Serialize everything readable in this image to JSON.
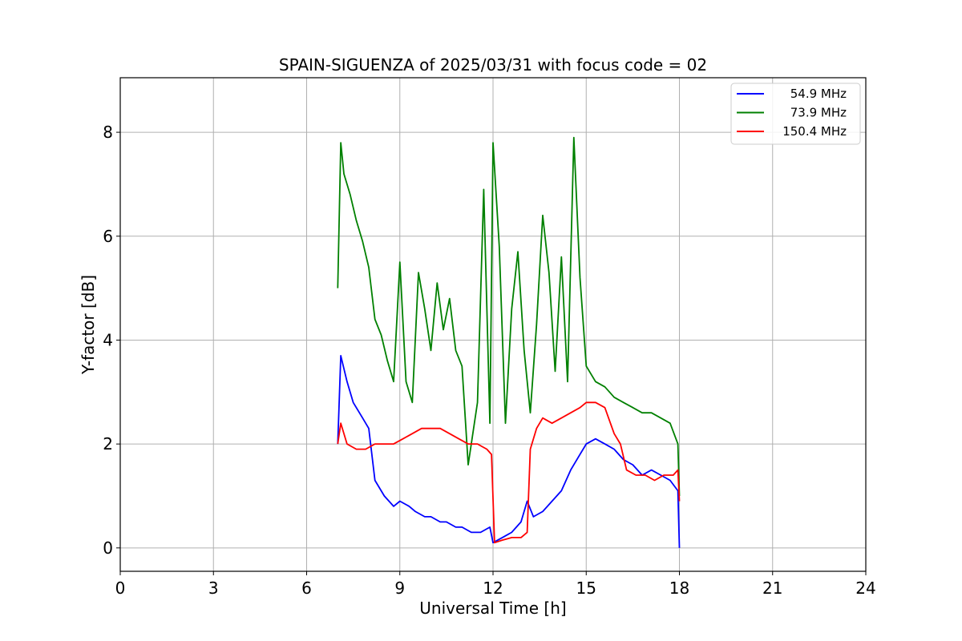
{
  "chart_data": {
    "type": "line",
    "title": "SPAIN-SIGUENZA of 2025/03/31 with focus code = 02",
    "xlabel": "Universal Time [h]",
    "ylabel": "Y-factor [dB]",
    "xlim": [
      0,
      24
    ],
    "ylim": [
      -0.45,
      9.05
    ],
    "xticks": [
      0,
      3,
      6,
      9,
      12,
      15,
      18,
      21,
      24
    ],
    "yticks": [
      0,
      2,
      4,
      6,
      8
    ],
    "grid": true,
    "legend_position": "top-right",
    "series": [
      {
        "name": "54.9 MHz",
        "color": "#0000ff",
        "x": [
          7.0,
          7.1,
          7.3,
          7.5,
          7.8,
          8.0,
          8.2,
          8.5,
          8.8,
          9.0,
          9.3,
          9.5,
          9.8,
          10.0,
          10.3,
          10.5,
          10.8,
          11.0,
          11.3,
          11.6,
          11.9,
          12.0,
          12.3,
          12.6,
          12.9,
          13.1,
          13.3,
          13.6,
          13.9,
          14.2,
          14.5,
          14.8,
          15.0,
          15.3,
          15.6,
          15.9,
          16.2,
          16.5,
          16.8,
          17.1,
          17.4,
          17.7,
          17.95,
          18.0
        ],
        "y": [
          2.0,
          3.7,
          3.2,
          2.8,
          2.5,
          2.3,
          1.3,
          1.0,
          0.8,
          0.9,
          0.8,
          0.7,
          0.6,
          0.6,
          0.5,
          0.5,
          0.4,
          0.4,
          0.3,
          0.3,
          0.4,
          0.1,
          0.2,
          0.3,
          0.5,
          0.9,
          0.6,
          0.7,
          0.9,
          1.1,
          1.5,
          1.8,
          2.0,
          2.1,
          2.0,
          1.9,
          1.7,
          1.6,
          1.4,
          1.5,
          1.4,
          1.3,
          1.1,
          0.0
        ]
      },
      {
        "name": "73.9 MHz",
        "color": "#008000",
        "x": [
          7.0,
          7.1,
          7.2,
          7.4,
          7.6,
          7.8,
          8.0,
          8.2,
          8.4,
          8.6,
          8.8,
          9.0,
          9.2,
          9.4,
          9.6,
          9.8,
          10.0,
          10.2,
          10.4,
          10.6,
          10.8,
          11.0,
          11.2,
          11.5,
          11.7,
          11.9,
          12.0,
          12.2,
          12.4,
          12.6,
          12.8,
          13.0,
          13.2,
          13.4,
          13.6,
          13.8,
          14.0,
          14.2,
          14.4,
          14.6,
          14.8,
          15.0,
          15.3,
          15.6,
          15.9,
          16.2,
          16.5,
          16.8,
          17.1,
          17.4,
          17.7,
          17.95,
          18.0
        ],
        "y": [
          5.0,
          7.8,
          7.2,
          6.8,
          6.3,
          5.9,
          5.4,
          4.4,
          4.1,
          3.6,
          3.2,
          5.5,
          3.2,
          2.8,
          5.3,
          4.6,
          3.8,
          5.1,
          4.2,
          4.8,
          3.8,
          3.5,
          1.6,
          2.8,
          6.9,
          2.4,
          7.8,
          5.8,
          2.4,
          4.6,
          5.7,
          3.8,
          2.6,
          4.3,
          6.4,
          5.3,
          3.4,
          5.6,
          3.2,
          7.9,
          5.2,
          3.5,
          3.2,
          3.1,
          2.9,
          2.8,
          2.7,
          2.6,
          2.6,
          2.5,
          2.4,
          2.0,
          1.0
        ]
      },
      {
        "name": "150.4 MHz",
        "color": "#ff0000",
        "x": [
          7.0,
          7.1,
          7.3,
          7.6,
          7.9,
          8.2,
          8.5,
          8.8,
          9.1,
          9.4,
          9.7,
          10.0,
          10.3,
          10.6,
          10.9,
          11.2,
          11.5,
          11.8,
          11.95,
          12.05,
          12.3,
          12.6,
          12.9,
          13.1,
          13.2,
          13.4,
          13.6,
          13.9,
          14.2,
          14.5,
          14.8,
          15.0,
          15.3,
          15.6,
          15.9,
          16.1,
          16.3,
          16.6,
          16.9,
          17.2,
          17.5,
          17.8,
          17.95,
          18.0
        ],
        "y": [
          2.0,
          2.4,
          2.0,
          1.9,
          1.9,
          2.0,
          2.0,
          2.0,
          2.1,
          2.2,
          2.3,
          2.3,
          2.3,
          2.2,
          2.1,
          2.0,
          2.0,
          1.9,
          1.8,
          0.1,
          0.15,
          0.2,
          0.2,
          0.3,
          1.9,
          2.3,
          2.5,
          2.4,
          2.5,
          2.6,
          2.7,
          2.8,
          2.8,
          2.7,
          2.2,
          2.0,
          1.5,
          1.4,
          1.4,
          1.3,
          1.4,
          1.4,
          1.5,
          0.9
        ]
      }
    ]
  }
}
